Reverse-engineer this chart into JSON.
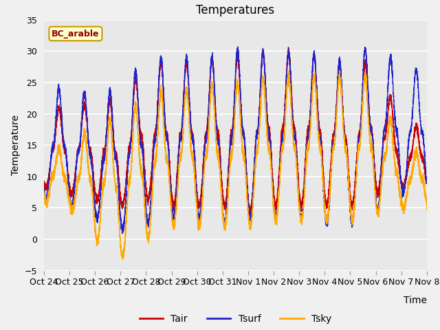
{
  "title": "Temperatures",
  "xlabel": "Time",
  "ylabel": "Temperature",
  "ylim": [
    -5,
    35
  ],
  "fig_color": "#f0f0f0",
  "bg_color": "#e8e8e8",
  "label_box_text": "BC_arable",
  "label_box_facecolor": "#ffffcc",
  "label_box_edgecolor": "#cc9900",
  "label_text_color": "#8b0000",
  "tair_color": "#cc0000",
  "tsurf_color": "#2222cc",
  "tsky_color": "#ffaa00",
  "line_width": 1.0,
  "xtick_labels": [
    "Oct 24",
    "Oct 25",
    "Oct 26",
    "Oct 27",
    "Oct 28",
    "Oct 29",
    "Oct 30",
    "Oct 31",
    "Nov 1",
    "Nov 2",
    "Nov 3",
    "Nov 4",
    "Nov 5",
    "Nov 6",
    "Nov 7",
    "Nov 8"
  ],
  "grid_color": "#ffffff",
  "yticks": [
    -5,
    0,
    5,
    10,
    15,
    20,
    25,
    30,
    35
  ]
}
